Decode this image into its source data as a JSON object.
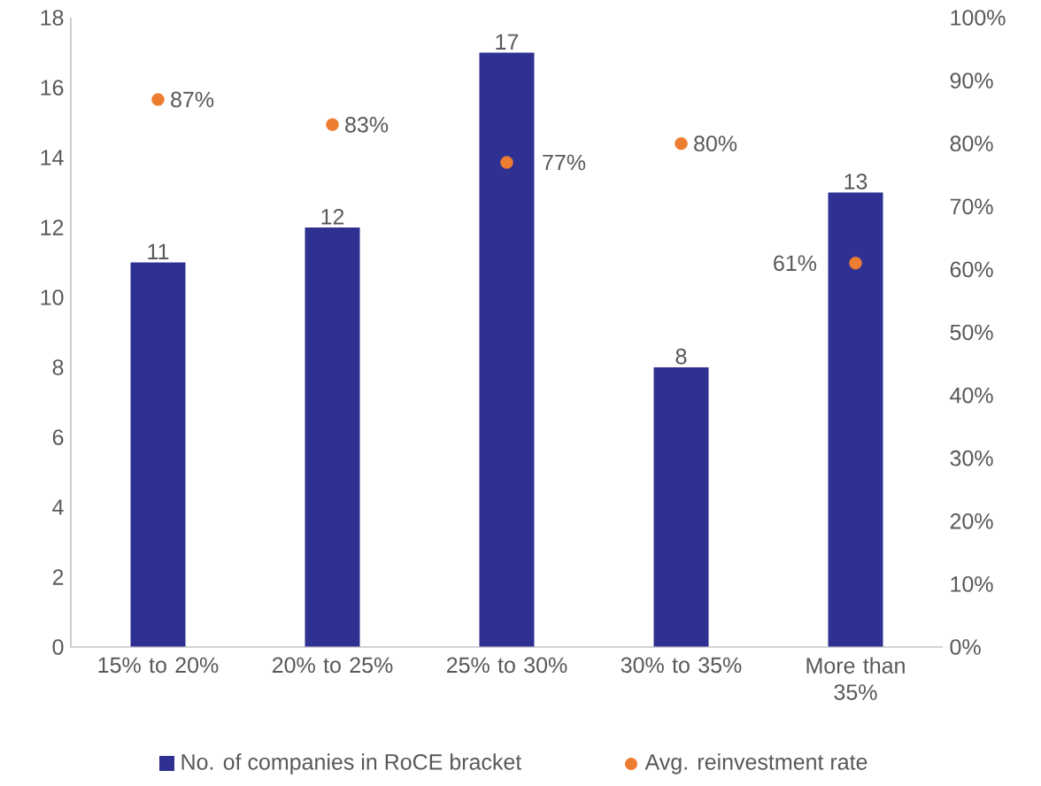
{
  "chart_data": {
    "type": "bar",
    "categories": [
      "15% to 20%",
      "20% to 25%",
      "25% to 30%",
      "30% to 35%",
      "More than 35%"
    ],
    "series": [
      {
        "name": "No. of companies in RoCE bracket",
        "color": "#2e3192",
        "values": [
          11,
          12,
          17,
          8,
          13
        ],
        "value_labels": [
          "11",
          "12",
          "17",
          "8",
          "13"
        ]
      },
      {
        "name": "Avg. reinvestment rate",
        "type": "scatter",
        "axis": "y2",
        "color": "#ed7d31",
        "values": [
          87,
          83,
          77,
          80,
          61
        ],
        "value_labels": [
          "87%",
          "83%",
          "77%",
          "80%",
          "61%"
        ]
      }
    ],
    "ylim": [
      0,
      18
    ],
    "yticks": [
      0,
      2,
      4,
      6,
      8,
      10,
      12,
      14,
      16,
      18
    ],
    "y2lim": [
      0,
      100
    ],
    "y2ticks": [
      {
        "value": 0,
        "label": "0%"
      },
      {
        "value": 10,
        "label": "10%"
      },
      {
        "value": 20,
        "label": "20%"
      },
      {
        "value": 30,
        "label": "30%"
      },
      {
        "value": 40,
        "label": "40%"
      },
      {
        "value": 50,
        "label": "50%"
      },
      {
        "value": 60,
        "label": "60%"
      },
      {
        "value": 70,
        "label": "70%"
      },
      {
        "value": 80,
        "label": "80%"
      },
      {
        "value": 90,
        "label": "90%"
      },
      {
        "value": 100,
        "label": "100%"
      }
    ],
    "grid": false,
    "legend": "bottom"
  }
}
